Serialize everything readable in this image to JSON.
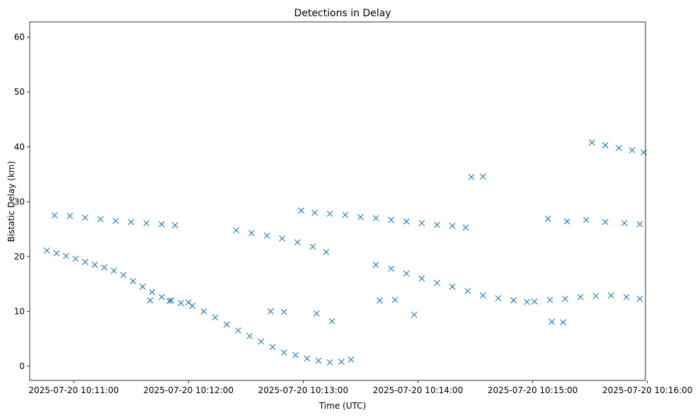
{
  "chart_data": {
    "type": "scatter",
    "title": "Detections in Delay",
    "xlabel": "Time (UTC)",
    "ylabel": "Bistatic Delay (km)",
    "x_unit": "UTC time",
    "xlim": [
      "2025-07-20 10:10:37",
      "2025-07-20 10:15:59"
    ],
    "ylim": [
      -2.6,
      62.8
    ],
    "x_ticks": [
      {
        "value": "2025-07-20 10:11:00",
        "label": "2025-07-20 10:11:00"
      },
      {
        "value": "2025-07-20 10:12:00",
        "label": "2025-07-20 10:12:00"
      },
      {
        "value": "2025-07-20 10:13:00",
        "label": "2025-07-20 10:13:00"
      },
      {
        "value": "2025-07-20 10:14:00",
        "label": "2025-07-20 10:14:00"
      },
      {
        "value": "2025-07-20 10:15:00",
        "label": "2025-07-20 10:15:00"
      },
      {
        "value": "2025-07-20 10:16:00",
        "label": "2025-07-20 10:16:00"
      }
    ],
    "y_ticks": [
      0,
      10,
      20,
      30,
      40,
      50,
      60
    ],
    "grid": false,
    "legend": null,
    "marker": "x",
    "marker_color": "#1f77b4",
    "series": [
      {
        "points": [
          [
            "2025-07-20 10:10:46",
            21.1
          ],
          [
            "2025-07-20 10:10:51",
            20.6
          ],
          [
            "2025-07-20 10:10:56",
            20.1
          ],
          [
            "2025-07-20 10:11:01",
            19.6
          ],
          [
            "2025-07-20 10:11:06",
            19.0
          ],
          [
            "2025-07-20 10:11:11",
            18.5
          ],
          [
            "2025-07-20 10:11:16",
            18.0
          ],
          [
            "2025-07-20 10:11:21",
            17.4
          ],
          [
            "2025-07-20 10:11:26",
            16.6
          ],
          [
            "2025-07-20 10:11:31",
            15.5
          ],
          [
            "2025-07-20 10:11:36",
            14.5
          ],
          [
            "2025-07-20 10:11:41",
            13.5
          ],
          [
            "2025-07-20 10:11:46",
            12.6
          ],
          [
            "2025-07-20 10:11:51",
            12.0
          ],
          [
            "2025-07-20 10:11:56",
            11.5
          ],
          [
            "2025-07-20 10:12:02",
            11.0
          ],
          [
            "2025-07-20 10:12:08",
            10.0
          ],
          [
            "2025-07-20 10:12:14",
            8.9
          ],
          [
            "2025-07-20 10:12:20",
            7.6
          ],
          [
            "2025-07-20 10:12:26",
            6.5
          ],
          [
            "2025-07-20 10:12:32",
            5.5
          ],
          [
            "2025-07-20 10:12:38",
            4.5
          ],
          [
            "2025-07-20 10:12:44",
            3.5
          ],
          [
            "2025-07-20 10:12:50",
            2.5
          ],
          [
            "2025-07-20 10:12:56",
            2.0
          ],
          [
            "2025-07-20 10:13:02",
            1.4
          ],
          [
            "2025-07-20 10:13:08",
            1.0
          ],
          [
            "2025-07-20 10:13:14",
            0.7
          ],
          [
            "2025-07-20 10:13:20",
            0.8
          ],
          [
            "2025-07-20 10:13:25",
            1.2
          ],
          [
            "2025-07-20 10:10:50",
            27.5
          ],
          [
            "2025-07-20 10:10:58",
            27.4
          ],
          [
            "2025-07-20 10:11:06",
            27.1
          ],
          [
            "2025-07-20 10:11:14",
            26.8
          ],
          [
            "2025-07-20 10:11:22",
            26.5
          ],
          [
            "2025-07-20 10:11:30",
            26.3
          ],
          [
            "2025-07-20 10:11:38",
            26.1
          ],
          [
            "2025-07-20 10:11:46",
            25.9
          ],
          [
            "2025-07-20 10:11:53",
            25.7
          ],
          [
            "2025-07-20 10:12:25",
            24.8
          ],
          [
            "2025-07-20 10:12:33",
            24.3
          ],
          [
            "2025-07-20 10:12:41",
            23.8
          ],
          [
            "2025-07-20 10:12:49",
            23.3
          ],
          [
            "2025-07-20 10:12:57",
            22.6
          ],
          [
            "2025-07-20 10:13:05",
            21.8
          ],
          [
            "2025-07-20 10:13:12",
            20.8
          ],
          [
            "2025-07-20 10:12:59",
            28.4
          ],
          [
            "2025-07-20 10:13:06",
            28.0
          ],
          [
            "2025-07-20 10:13:14",
            27.8
          ],
          [
            "2025-07-20 10:13:22",
            27.6
          ],
          [
            "2025-07-20 10:13:30",
            27.2
          ],
          [
            "2025-07-20 10:13:38",
            27.0
          ],
          [
            "2025-07-20 10:13:46",
            26.7
          ],
          [
            "2025-07-20 10:13:54",
            26.4
          ],
          [
            "2025-07-20 10:14:02",
            26.1
          ],
          [
            "2025-07-20 10:14:10",
            25.8
          ],
          [
            "2025-07-20 10:14:18",
            25.6
          ],
          [
            "2025-07-20 10:14:25",
            25.3
          ],
          [
            "2025-07-20 10:13:38",
            18.5
          ],
          [
            "2025-07-20 10:13:46",
            17.8
          ],
          [
            "2025-07-20 10:13:54",
            16.9
          ],
          [
            "2025-07-20 10:14:02",
            16.0
          ],
          [
            "2025-07-20 10:14:10",
            15.2
          ],
          [
            "2025-07-20 10:14:18",
            14.5
          ],
          [
            "2025-07-20 10:14:26",
            13.7
          ],
          [
            "2025-07-20 10:14:34",
            12.9
          ],
          [
            "2025-07-20 10:14:42",
            12.4
          ],
          [
            "2025-07-20 10:14:50",
            12.0
          ],
          [
            "2025-07-20 10:14:57",
            11.7
          ],
          [
            "2025-07-20 10:11:40",
            12.0
          ],
          [
            "2025-07-20 10:11:50",
            11.9
          ],
          [
            "2025-07-20 10:12:00",
            11.6
          ],
          [
            "2025-07-20 10:12:43",
            10.0
          ],
          [
            "2025-07-20 10:12:50",
            9.9
          ],
          [
            "2025-07-20 10:13:07",
            9.6
          ],
          [
            "2025-07-20 10:13:15",
            8.2
          ],
          [
            "2025-07-20 10:13:40",
            12.0
          ],
          [
            "2025-07-20 10:13:48",
            12.1
          ],
          [
            "2025-07-20 10:13:58",
            9.4
          ],
          [
            "2025-07-20 10:14:28",
            34.5
          ],
          [
            "2025-07-20 10:14:34",
            34.6
          ],
          [
            "2025-07-20 10:15:01",
            11.8
          ],
          [
            "2025-07-20 10:15:09",
            12.1
          ],
          [
            "2025-07-20 10:15:17",
            12.3
          ],
          [
            "2025-07-20 10:15:25",
            12.6
          ],
          [
            "2025-07-20 10:15:33",
            12.8
          ],
          [
            "2025-07-20 10:15:41",
            12.9
          ],
          [
            "2025-07-20 10:15:49",
            12.6
          ],
          [
            "2025-07-20 10:15:56",
            12.3
          ],
          [
            "2025-07-20 10:15:08",
            26.9
          ],
          [
            "2025-07-20 10:15:18",
            26.4
          ],
          [
            "2025-07-20 10:15:28",
            26.7
          ],
          [
            "2025-07-20 10:15:38",
            26.3
          ],
          [
            "2025-07-20 10:15:48",
            26.1
          ],
          [
            "2025-07-20 10:15:56",
            25.9
          ],
          [
            "2025-07-20 10:15:31",
            40.8
          ],
          [
            "2025-07-20 10:15:38",
            40.3
          ],
          [
            "2025-07-20 10:15:45",
            39.8
          ],
          [
            "2025-07-20 10:15:52",
            39.4
          ],
          [
            "2025-07-20 10:15:58",
            39.0
          ],
          [
            "2025-07-20 10:15:10",
            8.1
          ],
          [
            "2025-07-20 10:15:16",
            8.0
          ]
        ]
      }
    ]
  }
}
